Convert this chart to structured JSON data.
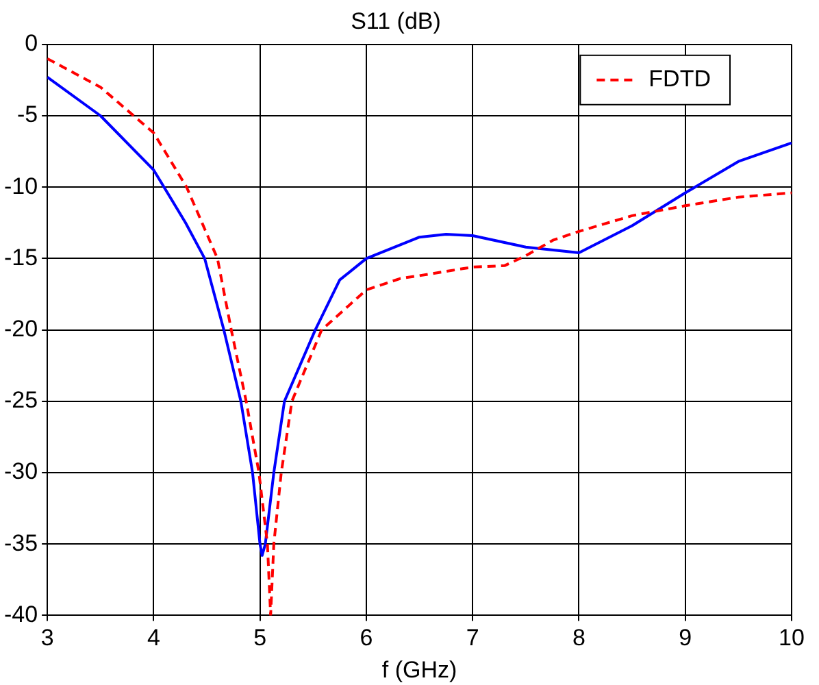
{
  "chart_data": {
    "type": "line",
    "title": "S11 (dB)",
    "xlabel": "f (GHz)",
    "xlim": [
      3,
      10
    ],
    "xticks": [
      3,
      4,
      5,
      6,
      7,
      8,
      9,
      10
    ],
    "ylim": [
      -40,
      0
    ],
    "yticks": [
      -40,
      -35,
      -30,
      -25,
      -20,
      -15,
      -10,
      -5,
      0
    ],
    "grid": true,
    "legend": "top right",
    "marker": "none",
    "series": [
      {
        "name": "FDTD",
        "color": "#ff0000",
        "line_style": "dashed",
        "x": [
          3,
          3.5,
          4,
          4.31,
          4.6,
          4.73,
          4.87,
          4.99,
          5.07,
          5.1,
          5.13,
          5.2,
          5.3,
          5.58,
          6,
          6.32,
          6.5,
          7,
          7.3,
          7.5,
          7.76,
          8,
          8.5,
          9,
          9.5,
          10
        ],
        "values": [
          -1,
          -3,
          -6.2,
          -10,
          -15,
          -20,
          -25,
          -30,
          -35,
          -40,
          -35,
          -30,
          -25,
          -20,
          -17.2,
          -16.4,
          -16.2,
          -15.6,
          -15.5,
          -14.8,
          -13.7,
          -13.1,
          -12,
          -11.3,
          -10.7,
          -10.4
        ]
      },
      {
        "color": "#0000ff",
        "line_style": "solid",
        "x": [
          3,
          3.5,
          4,
          4.3,
          4.48,
          4.66,
          4.82,
          4.93,
          5,
          5.02,
          5.05,
          5.13,
          5.23,
          5.52,
          5.75,
          6,
          6.5,
          6.75,
          7,
          7.5,
          8,
          8.5,
          9,
          9.5,
          10
        ],
        "values": [
          -2.3,
          -5,
          -8.8,
          -12.5,
          -15,
          -20,
          -25,
          -30,
          -35,
          -35.8,
          -35,
          -30,
          -25,
          -20,
          -16.5,
          -15,
          -13.5,
          -13.3,
          -13.4,
          -14.2,
          -14.6,
          -12.7,
          -10.4,
          -8.2,
          -6.9
        ]
      }
    ]
  }
}
